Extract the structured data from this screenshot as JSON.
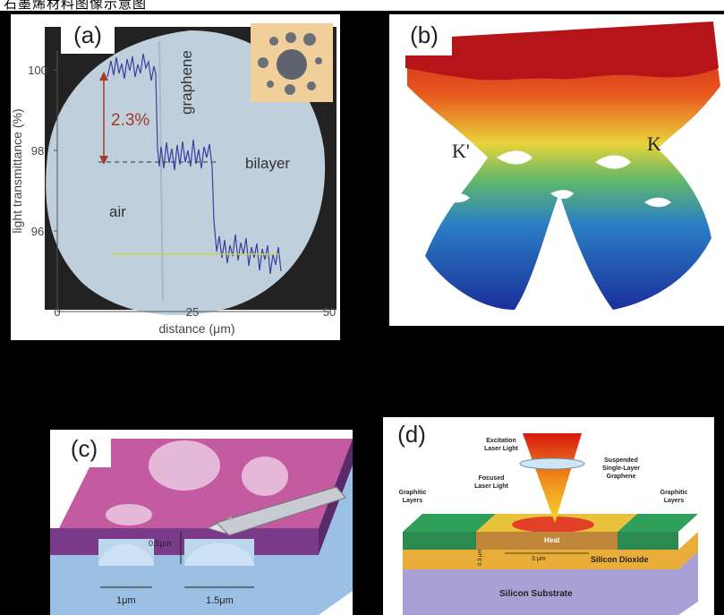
{
  "top_caption": "石墨烯材料图像示意图",
  "panels": {
    "a": {
      "label": "(a)",
      "ylabel": "light transmittance (%)",
      "xlabel": "distance (μm)",
      "yticks": [
        "100",
        "98",
        "96"
      ],
      "xticks": [
        "0",
        "25",
        "50"
      ],
      "annotation_percent": "2.3%",
      "region_air": "air",
      "region_graphene": "graphene",
      "region_bilayer": "bilayer"
    },
    "b": {
      "label": "(b)",
      "k_prime": "K'",
      "k": "K"
    },
    "c": {
      "label": "(c)",
      "dim_depth": "0.5μm",
      "dim_hole1": "1μm",
      "dim_hole2": "1.5μm"
    },
    "d": {
      "label": "(d)",
      "excitation": "Excitation\nLaser Light",
      "focused": "Focused\nLaser Light",
      "suspended": "Suspended\nSingle-Layer\nGraphene",
      "graphitic_left": "Graphitic\nLayers",
      "graphitic_right": "Graphitic\nLayers",
      "heat": "Heat",
      "oxide": "Silicon Dioxide",
      "substrate": "Silicon Substrate",
      "width_dim": "3 μm",
      "depth_dim": "0.3 μm"
    }
  }
}
